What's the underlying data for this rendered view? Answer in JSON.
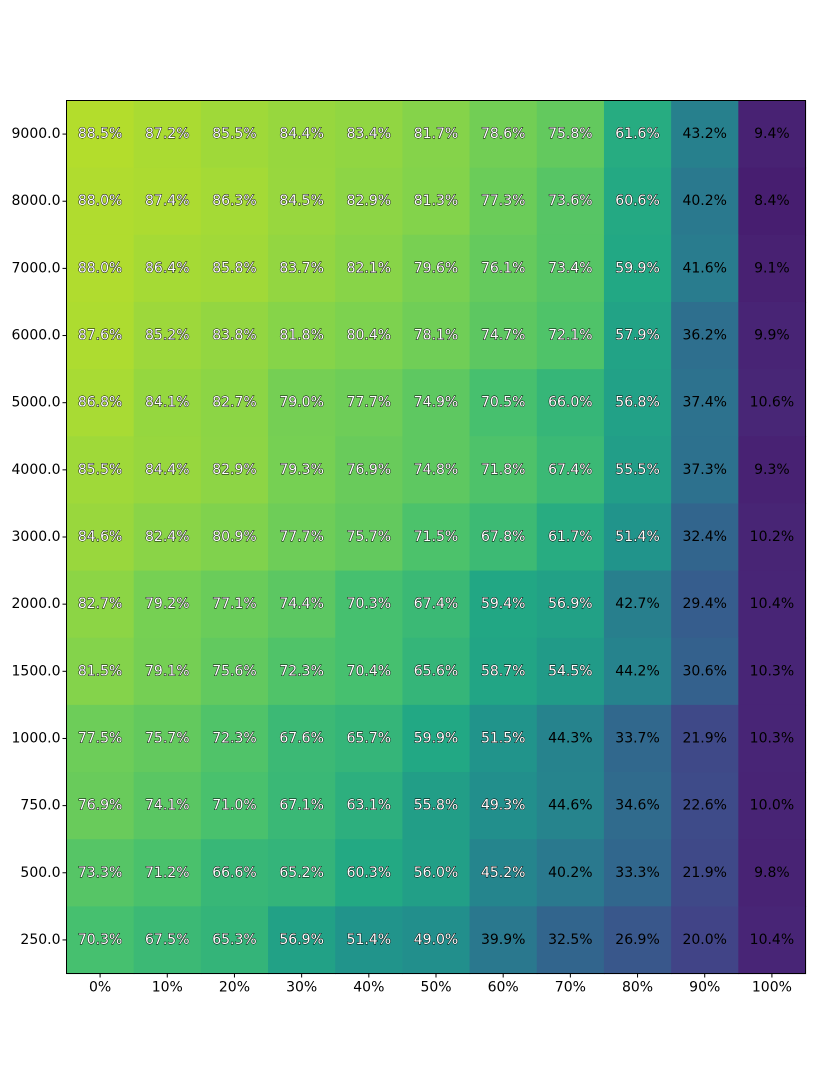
{
  "chart_data": {
    "type": "heatmap",
    "title": "",
    "xlabel": "",
    "ylabel": "",
    "x_categories": [
      "0%",
      "10%",
      "20%",
      "30%",
      "40%",
      "50%",
      "60%",
      "70%",
      "80%",
      "90%",
      "100%"
    ],
    "y_categories": [
      "9000.0",
      "8000.0",
      "7000.0",
      "6000.0",
      "5000.0",
      "4000.0",
      "3000.0",
      "2000.0",
      "1500.0",
      "1000.0",
      "750.0",
      "500.0",
      "250.0"
    ],
    "value_format": "percent_1dp",
    "colormap": "viridis",
    "color_range": [
      0,
      100
    ],
    "values": [
      [
        88.5,
        87.2,
        85.5,
        84.4,
        83.4,
        81.7,
        78.6,
        75.8,
        61.6,
        43.2,
        9.4
      ],
      [
        88.0,
        87.4,
        86.3,
        84.5,
        82.9,
        81.3,
        77.3,
        73.6,
        60.6,
        40.2,
        8.4
      ],
      [
        88.0,
        86.4,
        85.8,
        83.7,
        82.1,
        79.6,
        76.1,
        73.4,
        59.9,
        41.6,
        9.1
      ],
      [
        87.6,
        85.2,
        83.8,
        81.8,
        80.4,
        78.1,
        74.7,
        72.1,
        57.9,
        36.2,
        9.9
      ],
      [
        86.8,
        84.1,
        82.7,
        79.0,
        77.7,
        74.9,
        70.5,
        66.0,
        56.8,
        37.4,
        10.6
      ],
      [
        85.5,
        84.4,
        82.9,
        79.3,
        76.9,
        74.8,
        71.8,
        67.4,
        55.5,
        37.3,
        9.3
      ],
      [
        84.6,
        82.4,
        80.9,
        77.7,
        75.7,
        71.5,
        67.8,
        61.7,
        51.4,
        32.4,
        10.2
      ],
      [
        82.7,
        79.2,
        77.1,
        74.4,
        70.3,
        67.4,
        59.4,
        56.9,
        42.7,
        29.4,
        10.4
      ],
      [
        81.5,
        79.1,
        75.6,
        72.3,
        70.4,
        65.6,
        58.7,
        54.5,
        44.2,
        30.6,
        10.3
      ],
      [
        77.5,
        75.7,
        72.3,
        67.6,
        65.7,
        59.9,
        51.5,
        44.3,
        33.7,
        21.9,
        10.3
      ],
      [
        76.9,
        74.1,
        71.0,
        67.1,
        63.1,
        55.8,
        49.3,
        44.6,
        34.6,
        22.6,
        10.0
      ],
      [
        73.3,
        71.2,
        66.6,
        65.2,
        60.3,
        56.0,
        45.2,
        40.2,
        33.3,
        21.9,
        9.8
      ],
      [
        70.3,
        67.5,
        65.3,
        56.9,
        51.4,
        49.0,
        39.9,
        32.5,
        26.9,
        20.0,
        10.4
      ]
    ],
    "legend": "none",
    "grid": false
  }
}
